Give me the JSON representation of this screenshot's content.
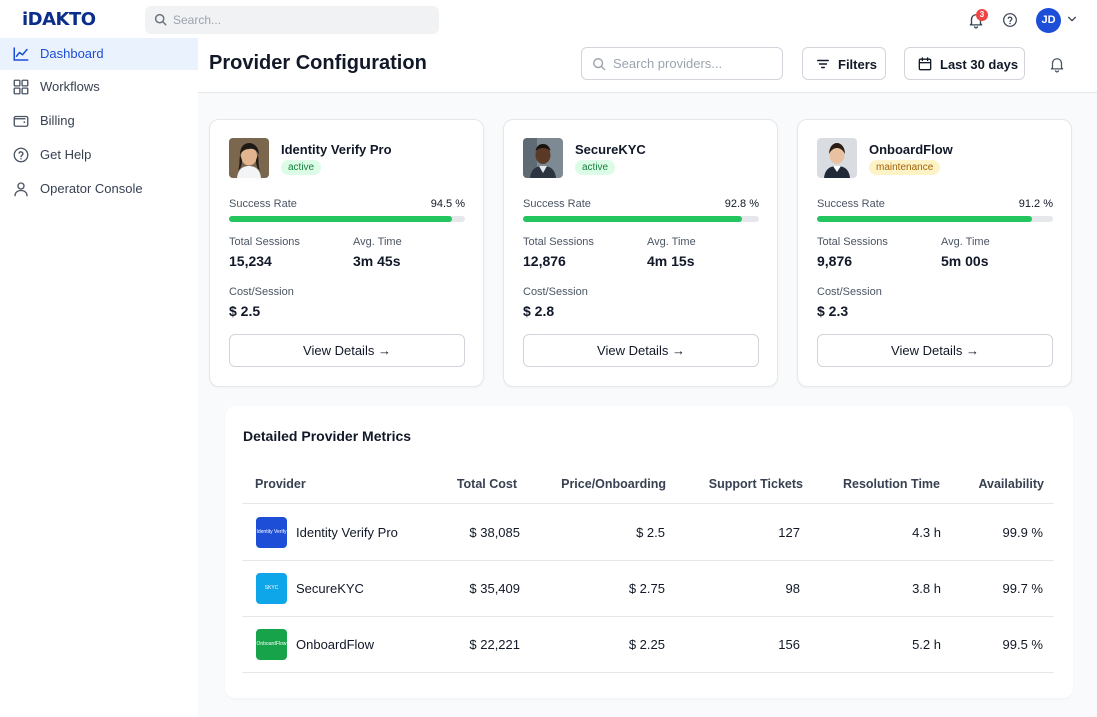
{
  "brand": {
    "logo_text": "iDAKTO",
    "color": "#0b2e8a"
  },
  "topbar": {
    "search_placeholder": "Search...",
    "notification_count": "3",
    "user_initials": "JD"
  },
  "sidebar": {
    "items": [
      {
        "label": "Dashboard",
        "icon": "chart-line-icon",
        "active": true
      },
      {
        "label": "Workflows",
        "icon": "grid-icon",
        "active": false
      },
      {
        "label": "Billing",
        "icon": "wallet-icon",
        "active": false
      },
      {
        "label": "Get Help",
        "icon": "help-circle-icon",
        "active": false
      },
      {
        "label": "Operator Console",
        "icon": "user-icon",
        "active": false
      }
    ]
  },
  "header": {
    "title": "Provider Configuration",
    "search_placeholder": "Search providers...",
    "filters_label": "Filters",
    "date_range_label": "Last 30 days"
  },
  "providers": [
    {
      "name": "Identity Verify Pro",
      "status": "active",
      "success_rate_label": "Success Rate",
      "success_rate": "94.5 %",
      "success_rate_fraction": 0.945,
      "sessions_label": "Total Sessions",
      "sessions": "15,234",
      "avg_time_label": "Avg. Time",
      "avg_time": "3m 45s",
      "cost_label": "Cost/Session",
      "cost": "$ 2.5",
      "details_label": "View Details →"
    },
    {
      "name": "SecureKYC",
      "status": "active",
      "success_rate_label": "Success Rate",
      "success_rate": "92.8 %",
      "success_rate_fraction": 0.928,
      "sessions_label": "Total Sessions",
      "sessions": "12,876",
      "avg_time_label": "Avg. Time",
      "avg_time": "4m 15s",
      "cost_label": "Cost/Session",
      "cost": "$ 2.8",
      "details_label": "View Details →"
    },
    {
      "name": "OnboardFlow",
      "status": "maintenance",
      "success_rate_label": "Success Rate",
      "success_rate": "91.2 %",
      "success_rate_fraction": 0.912,
      "sessions_label": "Total Sessions",
      "sessions": "9,876",
      "avg_time_label": "Avg. Time",
      "avg_time": "5m 00s",
      "cost_label": "Cost/Session",
      "cost": "$ 2.3",
      "details_label": "View Details →"
    }
  ],
  "metrics": {
    "title": "Detailed Provider Metrics",
    "columns": [
      "Provider",
      "Total Cost",
      "Price/Onboarding",
      "Support Tickets",
      "Resolution Time",
      "Availability"
    ],
    "rows": [
      {
        "provider": "Identity Verify Pro",
        "logo_color": "#1d4ed8",
        "logo_text": "Identity Verify Pro",
        "total_cost": "$ 38,085",
        "price": "$ 2.5",
        "tickets": "127",
        "resolution": "4.3 h",
        "availability": "99.9 %"
      },
      {
        "provider": "SecureKYC",
        "logo_color": "#0ea5e9",
        "logo_text": "SKYC",
        "total_cost": "$ 35,409",
        "price": "$ 2.75",
        "tickets": "98",
        "resolution": "3.8 h",
        "availability": "99.7 %"
      },
      {
        "provider": "OnboardFlow",
        "logo_color": "#16a34a",
        "logo_text": "OnboardFlow",
        "total_cost": "$ 22,221",
        "price": "$ 2.25",
        "tickets": "156",
        "resolution": "5.2 h",
        "availability": "99.5 %"
      }
    ]
  },
  "colors": {
    "accent": "#1d4ed8",
    "success": "#22c55e",
    "active_badge_bg": "#dcfce7",
    "maintenance_badge_bg": "#fef3c7"
  }
}
